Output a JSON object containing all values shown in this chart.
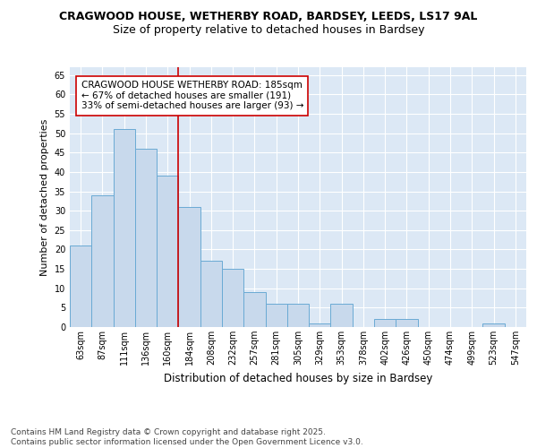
{
  "title_line1": "CRAGWOOD HOUSE, WETHERBY ROAD, BARDSEY, LEEDS, LS17 9AL",
  "title_line2": "Size of property relative to detached houses in Bardsey",
  "xlabel": "Distribution of detached houses by size in Bardsey",
  "ylabel": "Number of detached properties",
  "categories": [
    "63sqm",
    "87sqm",
    "111sqm",
    "136sqm",
    "160sqm",
    "184sqm",
    "208sqm",
    "232sqm",
    "257sqm",
    "281sqm",
    "305sqm",
    "329sqm",
    "353sqm",
    "378sqm",
    "402sqm",
    "426sqm",
    "450sqm",
    "474sqm",
    "499sqm",
    "523sqm",
    "547sqm"
  ],
  "values": [
    21,
    34,
    51,
    46,
    39,
    31,
    17,
    15,
    9,
    6,
    6,
    1,
    6,
    0,
    2,
    2,
    0,
    0,
    0,
    1,
    0
  ],
  "bar_color": "#c8d9ec",
  "bar_edge_color": "#6aaad4",
  "vline_color": "#cc0000",
  "annotation_text": "CRAGWOOD HOUSE WETHERBY ROAD: 185sqm\n← 67% of detached houses are smaller (191)\n33% of semi-detached houses are larger (93) →",
  "annotation_box_color": "white",
  "annotation_box_edge_color": "#cc0000",
  "ylim_max": 67,
  "yticks": [
    0,
    5,
    10,
    15,
    20,
    25,
    30,
    35,
    40,
    45,
    50,
    55,
    60,
    65
  ],
  "figure_bg": "white",
  "plot_bg": "#dce8f5",
  "grid_color": "white",
  "footnote": "Contains HM Land Registry data © Crown copyright and database right 2025.\nContains public sector information licensed under the Open Government Licence v3.0.",
  "title_fontsize": 9.0,
  "subtitle_fontsize": 9.0,
  "tick_fontsize": 7.0,
  "axis_label_fontsize": 8.5,
  "annotation_fontsize": 7.5,
  "footnote_fontsize": 6.5,
  "ylabel_fontsize": 8.0
}
